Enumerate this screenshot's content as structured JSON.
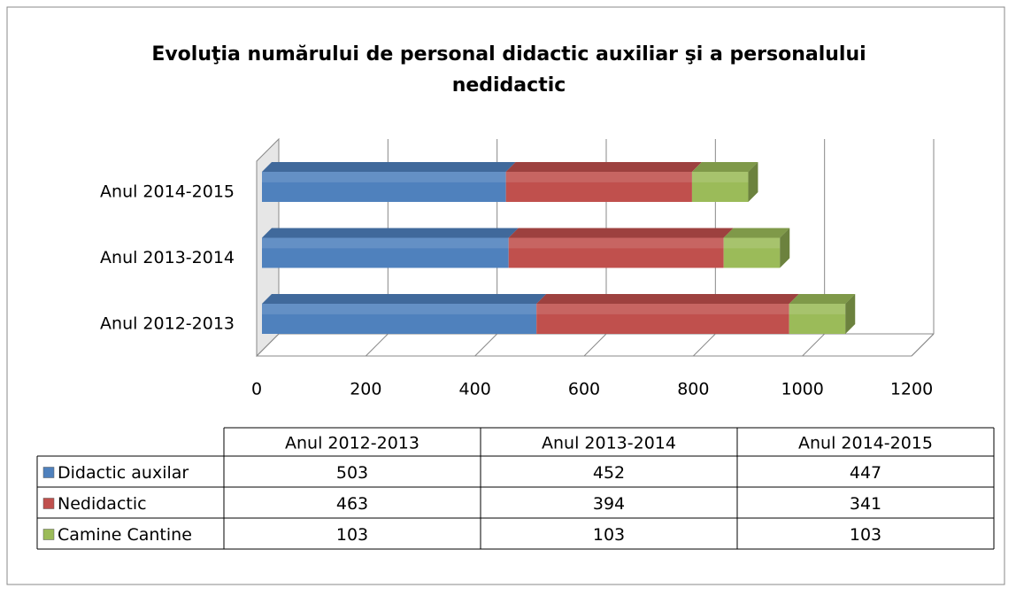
{
  "chart_data": {
    "type": "bar",
    "orientation": "horizontal",
    "stacked": true,
    "title": "Evoluţia numărului de personal didactic auxiliar şi a personalului nedidactic",
    "categories": [
      "Anul 2012-2013",
      "Anul 2013-2014",
      "Anul 2014-2015"
    ],
    "series": [
      {
        "name": "Didactic auxilar",
        "color": "#4f81bd",
        "values": [
          503,
          452,
          447
        ]
      },
      {
        "name": "Nedidactic",
        "color": "#c0504d",
        "values": [
          463,
          394,
          341
        ]
      },
      {
        "name": "Camine Cantine",
        "color": "#9bbb59",
        "values": [
          103,
          103,
          103
        ]
      }
    ],
    "xlim": [
      0,
      1200
    ],
    "xticks": [
      0,
      200,
      400,
      600,
      800,
      1000,
      1200
    ],
    "grid": true
  }
}
